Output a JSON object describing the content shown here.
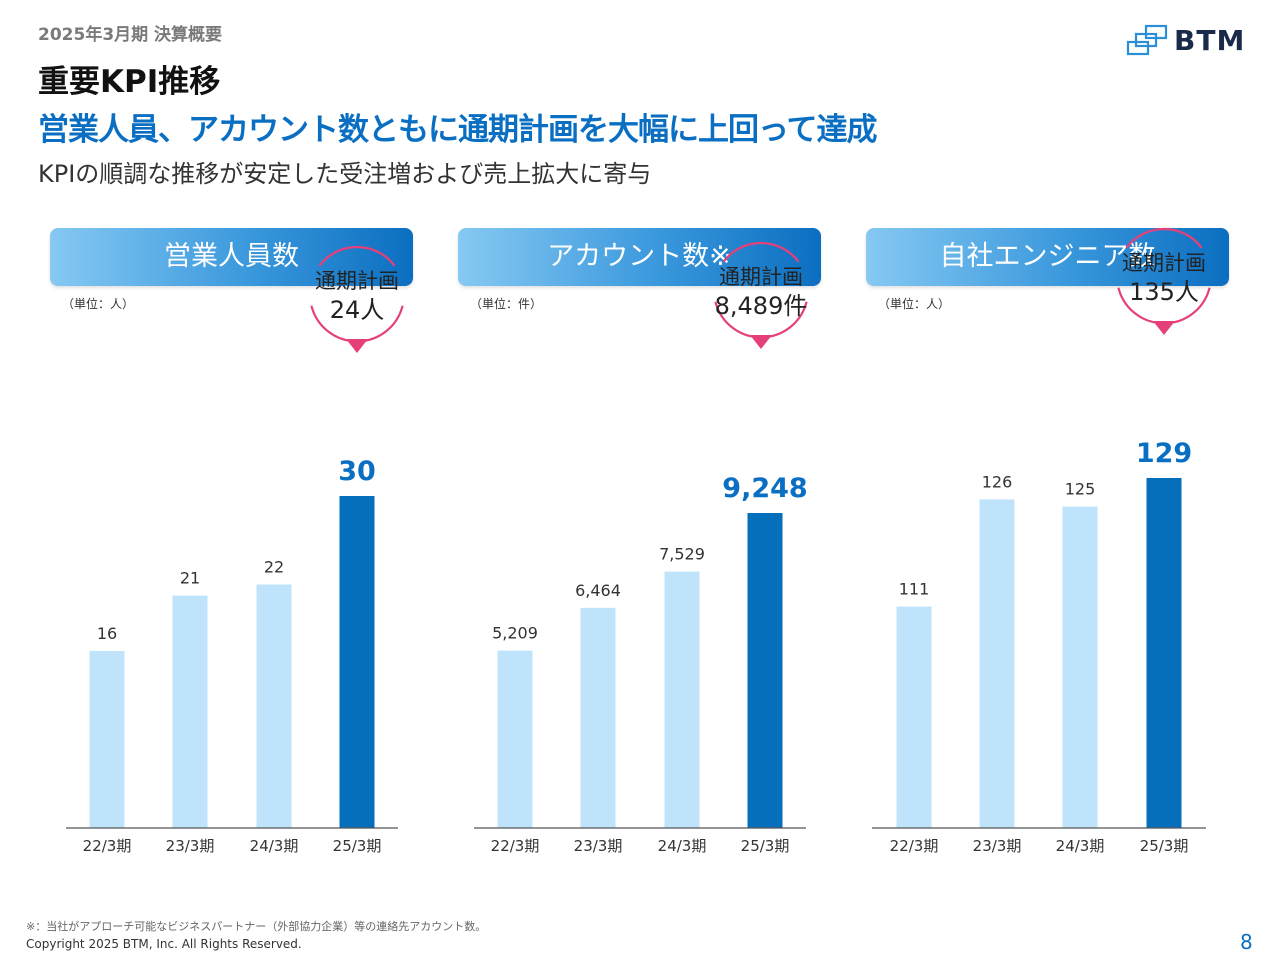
{
  "header": {
    "period": "2025年3月期 決算概要",
    "title": "重要KPI推移",
    "headline": "営業人員、アカウント数ともに通期計画を大幅に上回って達成",
    "subhead": "KPIの順調な推移が安定した受注増および売上拡大に寄与"
  },
  "logo": {
    "text": "BTM"
  },
  "colors": {
    "bar_past": "#bfe3fb",
    "bar_current": "#066fbc",
    "plan": "#e6407a",
    "value_highlight": "#0a6fc2"
  },
  "chart_data": [
    {
      "type": "bar",
      "title": "営業人員数",
      "unit": "（単位：人）",
      "categories": [
        "22/3期",
        "23/3期",
        "24/3期",
        "25/3期"
      ],
      "values": [
        16,
        21,
        22,
        30
      ],
      "value_labels": [
        "16",
        "21",
        "22",
        "30"
      ],
      "plan": {
        "label": "通期計画",
        "value_text": "24人",
        "value": 24
      },
      "highlight_index": 3
    },
    {
      "type": "bar",
      "title": "アカウント数※",
      "unit": "（単位：件）",
      "categories": [
        "22/3期",
        "23/3期",
        "24/3期",
        "25/3期"
      ],
      "values": [
        5209,
        6464,
        7529,
        9248
      ],
      "value_labels": [
        "5,209",
        "6,464",
        "7,529",
        "9,248"
      ],
      "plan": {
        "label": "通期計画",
        "value_text": "8,489件",
        "value": 8489
      },
      "highlight_index": 3
    },
    {
      "type": "bar",
      "title": "自社エンジニア数",
      "unit": "（単位：人）",
      "categories": [
        "22/3期",
        "23/3期",
        "24/3期",
        "25/3期"
      ],
      "values": [
        111,
        126,
        125,
        129
      ],
      "value_labels": [
        "111",
        "126",
        "125",
        "129"
      ],
      "plan": {
        "label": "通期計画",
        "value_text": "135人",
        "value": 135
      },
      "highlight_index": 3
    }
  ],
  "footer": {
    "footnote": "※：当社がアプローチ可能なビジネスパートナー（外部協力企業）等の連絡先アカウント数。",
    "copyright": "Copyright 2025 BTM, Inc. All Rights Reserved.",
    "page": "8"
  }
}
